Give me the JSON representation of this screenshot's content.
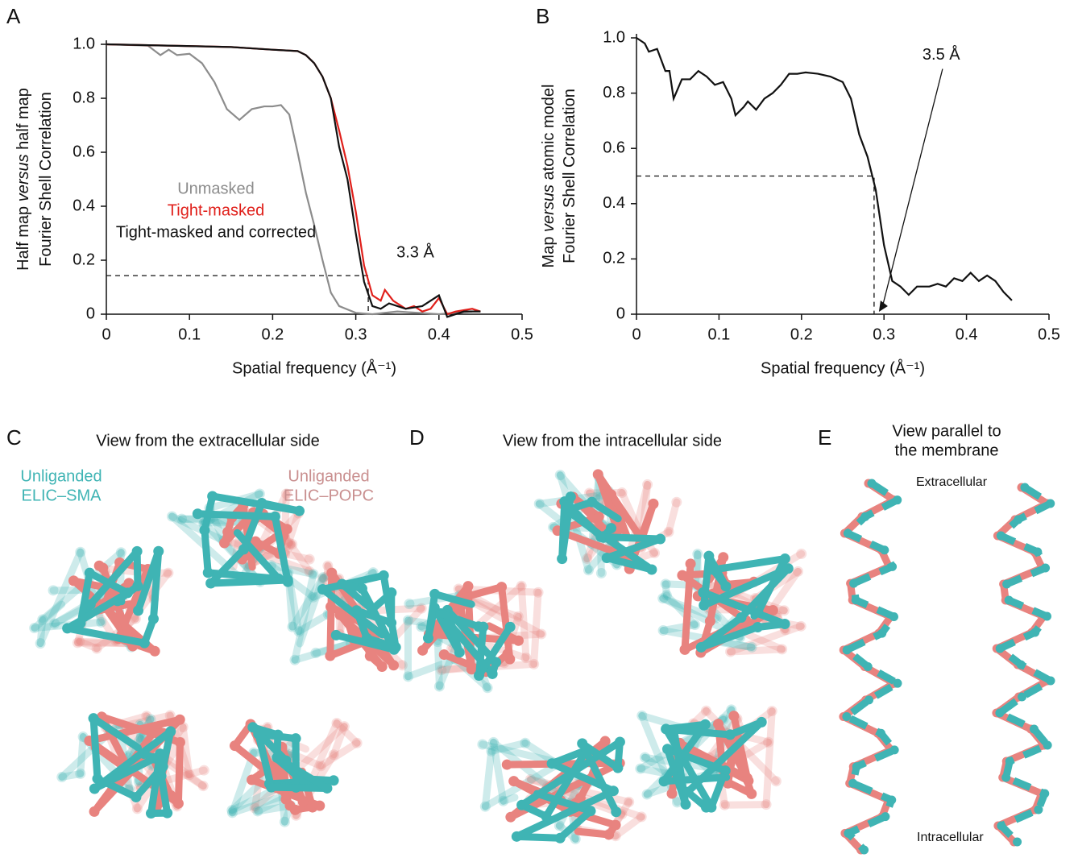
{
  "chart_data": [
    {
      "type": "line",
      "panel": "A",
      "ylabel": [
        [
          "Half map ",
          "versus",
          " half map"
        ],
        [
          "Fourier Shell Correlation"
        ]
      ],
      "xlabel": "Spatial frequency (Å⁻¹)",
      "xlim": [
        0,
        0.5
      ],
      "xticks": [
        0,
        0.1,
        0.2,
        0.3,
        0.4,
        0.5
      ],
      "ylim": [
        0,
        1
      ],
      "yticks": [
        0,
        0.2,
        0.4,
        0.6,
        0.8,
        {
          "value": 1,
          "label": "1.0"
        }
      ],
      "series": [
        {
          "name": "Unmasked",
          "color": "#8c8c8c",
          "x": [
            0,
            0.05,
            0.065,
            0.075,
            0.085,
            0.1,
            0.115,
            0.13,
            0.145,
            0.16,
            0.175,
            0.19,
            0.2,
            0.21,
            0.22,
            0.23,
            0.24,
            0.25,
            0.26,
            0.27,
            0.28,
            0.3,
            0.32,
            0.35,
            0.4,
            0.44
          ],
          "values": [
            1.0,
            0.995,
            0.96,
            0.98,
            0.96,
            0.965,
            0.93,
            0.86,
            0.76,
            0.72,
            0.76,
            0.77,
            0.77,
            0.775,
            0.74,
            0.6,
            0.45,
            0.33,
            0.2,
            0.08,
            0.03,
            0.005,
            0,
            0.01,
            0,
            0.01
          ]
        },
        {
          "name": "Tight-masked",
          "color": "#e0201b",
          "x": [
            0,
            0.15,
            0.2,
            0.23,
            0.24,
            0.25,
            0.26,
            0.27,
            0.28,
            0.29,
            0.3,
            0.31,
            0.32,
            0.33,
            0.335,
            0.345,
            0.36,
            0.37,
            0.38,
            0.39,
            0.4,
            0.41,
            0.42,
            0.44,
            0.45
          ],
          "values": [
            1.0,
            0.99,
            0.98,
            0.975,
            0.96,
            0.93,
            0.88,
            0.8,
            0.68,
            0.55,
            0.38,
            0.18,
            0.07,
            0.05,
            0.09,
            0.05,
            0.02,
            0.03,
            0.01,
            0.02,
            0.06,
            0,
            0.01,
            0.02,
            0.01
          ]
        },
        {
          "name": "Tight-masked and corrected",
          "color": "#111111",
          "x": [
            0,
            0.15,
            0.2,
            0.23,
            0.24,
            0.25,
            0.26,
            0.27,
            0.28,
            0.29,
            0.3,
            0.31,
            0.32,
            0.33,
            0.34,
            0.36,
            0.38,
            0.4,
            0.41,
            0.43,
            0.45
          ],
          "values": [
            1.0,
            0.99,
            0.98,
            0.975,
            0.96,
            0.93,
            0.88,
            0.8,
            0.62,
            0.5,
            0.3,
            0.12,
            0.03,
            0.02,
            0.04,
            0.02,
            0.03,
            0.07,
            -0.01,
            0.01,
            0.01
          ]
        }
      ],
      "annotation": {
        "text": "3.3 Å",
        "x": 0.315,
        "y": 0.143
      }
    },
    {
      "type": "line",
      "panel": "B",
      "ylabel": [
        [
          "Map ",
          "versus",
          " atomic model"
        ],
        [
          "Fourier Shell Correlation"
        ]
      ],
      "xlabel": "Spatial frequency (Å⁻¹)",
      "xlim": [
        0,
        0.5
      ],
      "xticks": [
        0,
        0.1,
        0.2,
        0.3,
        0.4,
        0.5
      ],
      "ylim": [
        0,
        1
      ],
      "yticks": [
        0,
        0.2,
        0.4,
        0.6,
        0.8,
        {
          "value": 1,
          "label": "1.0"
        }
      ],
      "series": [
        {
          "color": "#111111",
          "x": [
            0,
            0.01,
            0.015,
            0.025,
            0.03,
            0.035,
            0.04,
            0.045,
            0.055,
            0.065,
            0.075,
            0.085,
            0.095,
            0.105,
            0.115,
            0.12,
            0.13,
            0.135,
            0.145,
            0.155,
            0.165,
            0.175,
            0.185,
            0.195,
            0.205,
            0.22,
            0.235,
            0.25,
            0.26,
            0.27,
            0.28,
            0.29,
            0.3,
            0.31,
            0.32,
            0.33,
            0.34,
            0.355,
            0.365,
            0.375,
            0.385,
            0.395,
            0.405,
            0.415,
            0.425,
            0.435,
            0.445,
            0.455
          ],
          "values": [
            1.0,
            0.98,
            0.95,
            0.96,
            0.92,
            0.88,
            0.88,
            0.78,
            0.85,
            0.85,
            0.88,
            0.86,
            0.83,
            0.84,
            0.78,
            0.72,
            0.75,
            0.77,
            0.74,
            0.78,
            0.8,
            0.83,
            0.87,
            0.87,
            0.875,
            0.87,
            0.86,
            0.84,
            0.78,
            0.65,
            0.57,
            0.45,
            0.25,
            0.12,
            0.1,
            0.07,
            0.1,
            0.1,
            0.11,
            0.1,
            0.13,
            0.12,
            0.15,
            0.12,
            0.14,
            0.12,
            0.08,
            0.05
          ]
        }
      ],
      "annotation": {
        "text": "3.5 Å",
        "x": 0.288,
        "y": 0.5
      }
    }
  ],
  "panels": {
    "C": {
      "label": "C",
      "title": "View from the extracellular side",
      "teal_label": [
        "Unliganded",
        "ELIC–SMA"
      ],
      "pink_label": [
        "Unliganded",
        "ELIC–POPC"
      ]
    },
    "D": {
      "label": "D",
      "title": "View from the intracellular side"
    },
    "E": {
      "label": "E",
      "title": [
        "View parallel to",
        "the membrane"
      ],
      "top": "Extracellular",
      "bottom": "Intracellular"
    }
  }
}
